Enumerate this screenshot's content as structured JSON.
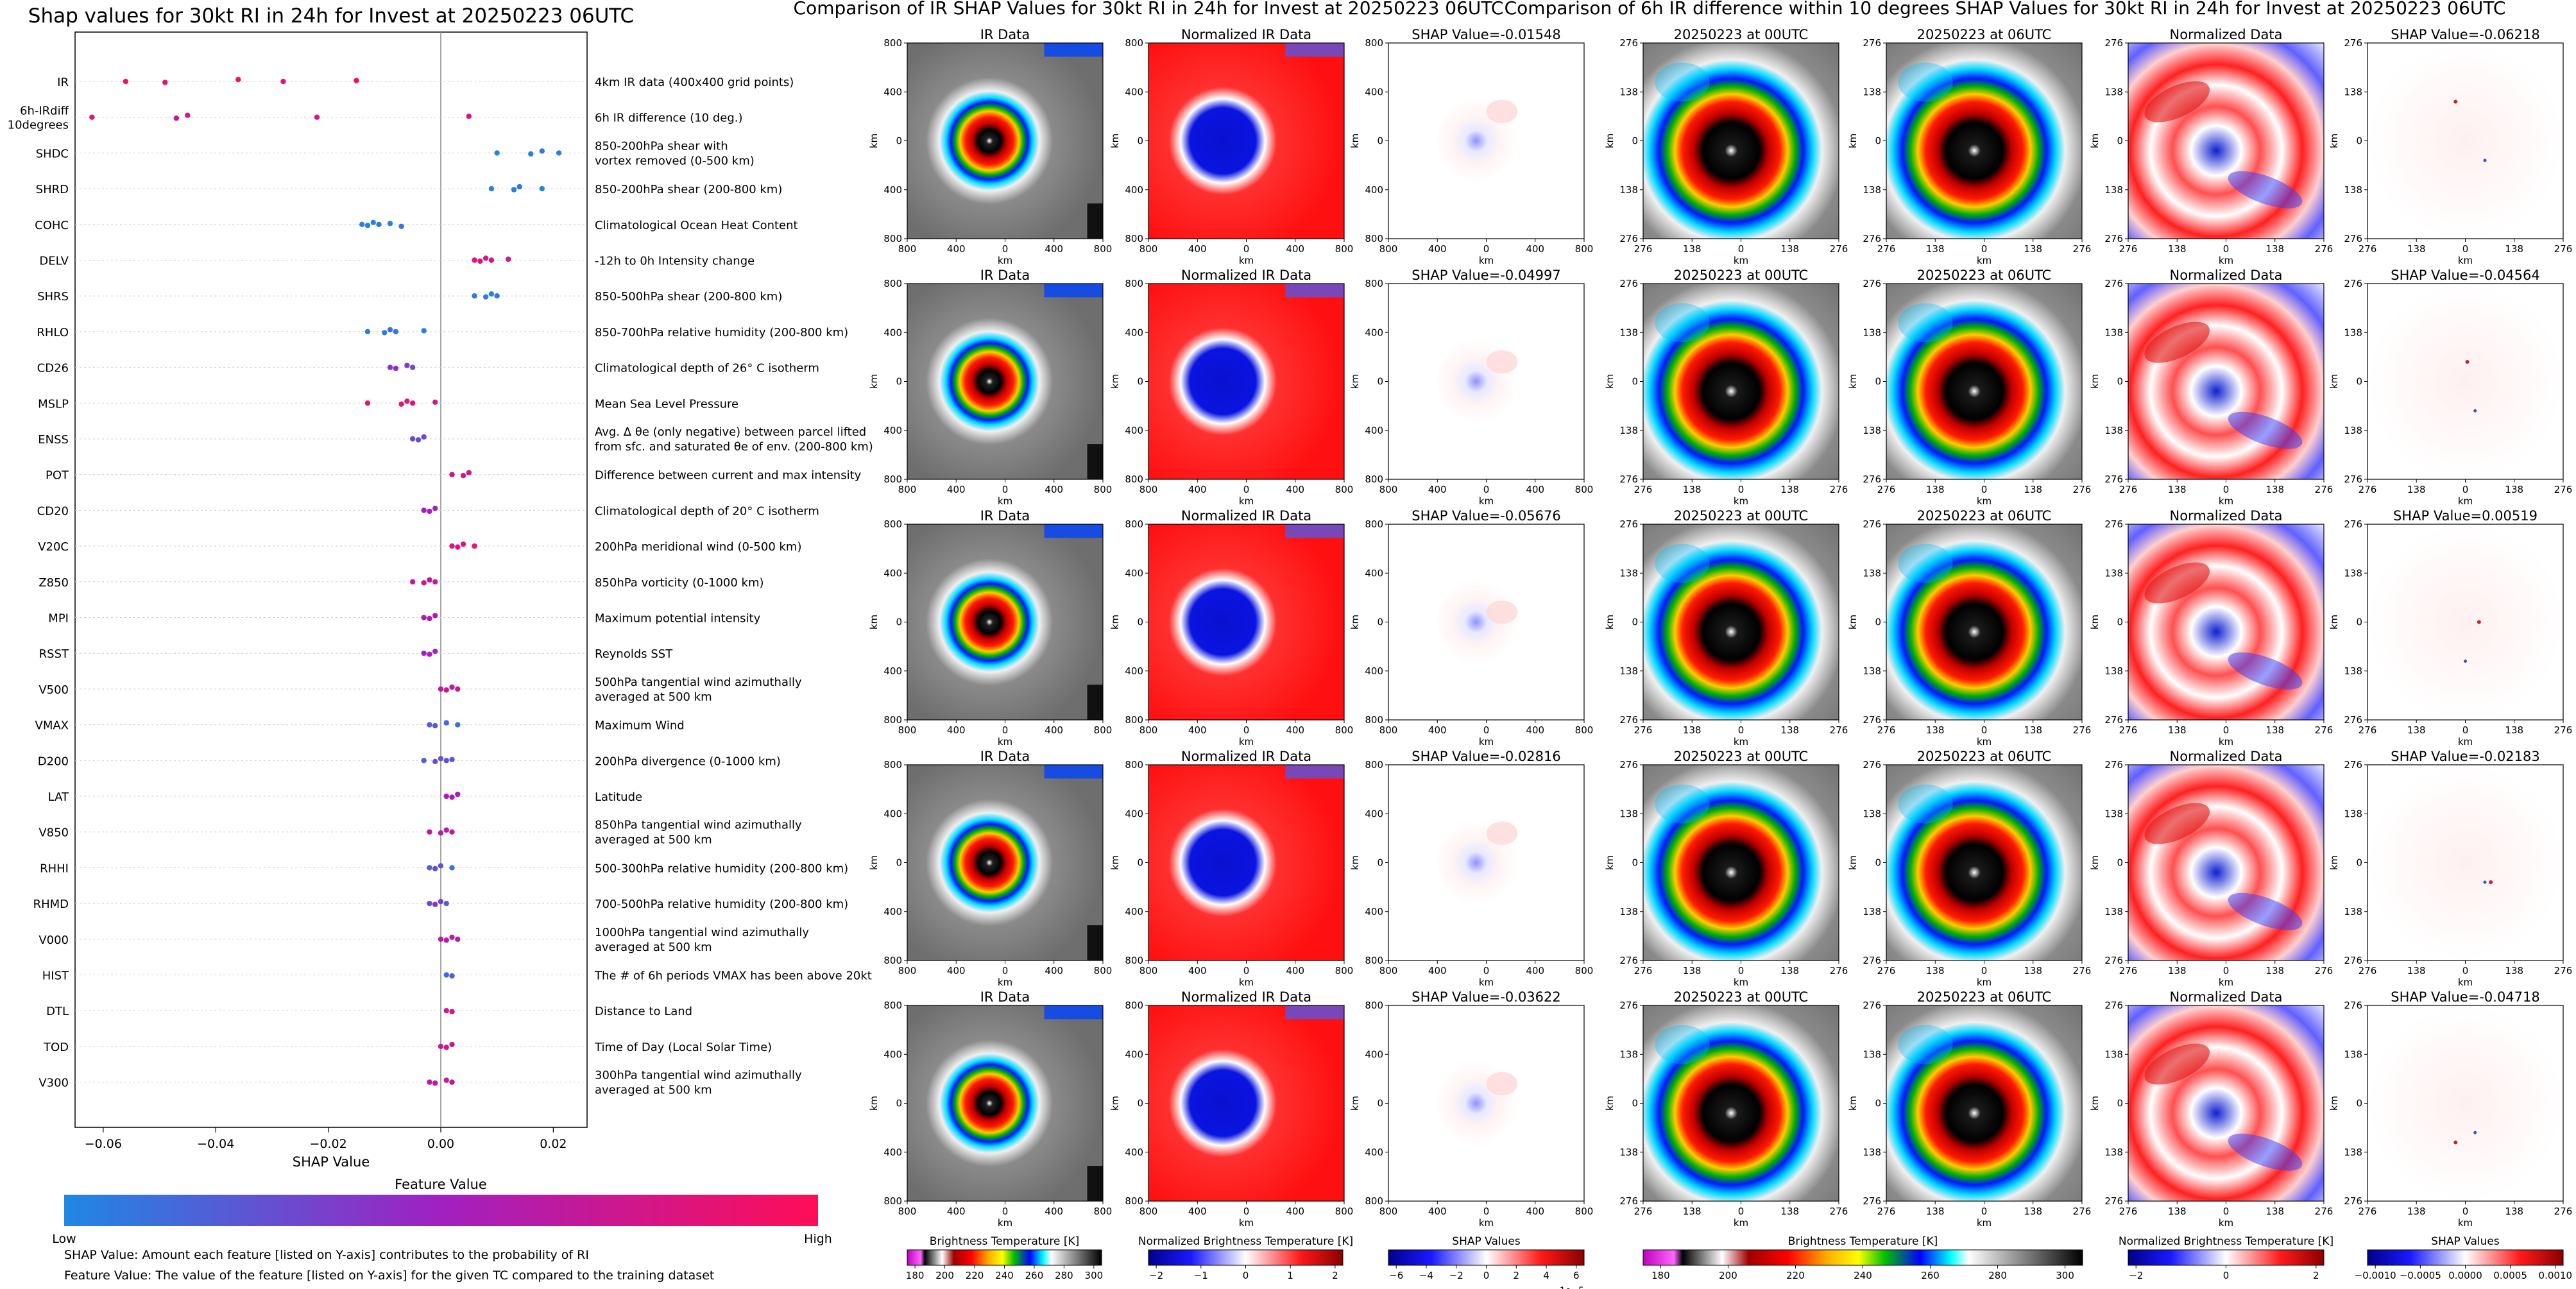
{
  "left_panel": {
    "title": "Shap values for 30kt RI in 24h for Invest at 20250223 06UTC",
    "colorbar_title": "Feature Value",
    "colorbar_low": "Low",
    "colorbar_high": "High",
    "note_1": "SHAP Value: Amount each feature [listed on Y-axis] contributes to the probability of RI",
    "note_2": "Feature Value: The value of the feature [listed on Y-axis] for the given TC compared to the training dataset"
  },
  "middle_panel": {
    "title": "Comparison of IR SHAP Values for 30kt RI in 24h for Invest at 20250223 06UTC",
    "col_titles": [
      "IR Data",
      "Normalized IR Data"
    ],
    "shap_titles": [
      "SHAP Value=-0.01548",
      "SHAP Value=-0.04997",
      "SHAP Value=-0.05676",
      "SHAP Value=-0.02816",
      "SHAP Value=-0.03622"
    ],
    "ticks": [
      "800",
      "400",
      "0",
      "400",
      "800"
    ],
    "axis_label": "km",
    "colorbars": [
      {
        "label": "Brightness Temperature [K]",
        "ticks": [
          "180",
          "200",
          "220",
          "240",
          "260",
          "280",
          "300"
        ]
      },
      {
        "label": "Normalized Brightness Temperature [K]",
        "ticks": [
          "−2",
          "−1",
          "0",
          "1",
          "2"
        ]
      },
      {
        "label": "SHAP Values",
        "ticks": [
          "−6",
          "−4",
          "−2",
          "0",
          "2",
          "4",
          "6"
        ],
        "exponent": "1e−5"
      }
    ]
  },
  "right_panel": {
    "title": "Comparison of 6h IR difference within 10 degrees SHAP Values for 30kt RI in 24h for Invest at 20250223 06UTC",
    "col_titles": [
      "20250223 at 00UTC",
      "20250223 at 06UTC",
      "Normalized Data"
    ],
    "shap_titles": [
      "SHAP Value=-0.06218",
      "SHAP Value=-0.04564",
      "SHAP Value=0.00519",
      "SHAP Value=-0.02183",
      "SHAP Value=-0.04718"
    ],
    "ticks": [
      "276",
      "138",
      "0",
      "138",
      "276"
    ],
    "axis_label": "km",
    "colorbars": [
      {
        "label": "Brightness Temperature [K]",
        "ticks": [
          "180",
          "200",
          "220",
          "240",
          "260",
          "280",
          "300"
        ]
      },
      {
        "label": "Normalized Brightness Temperature [K]",
        "ticks": [
          "−2",
          "0",
          "2"
        ]
      },
      {
        "label": "SHAP Values",
        "ticks": [
          "−0.0010",
          "−0.0005",
          "0.0000",
          "0.0005",
          "0.0010"
        ]
      }
    ]
  },
  "colors": {
    "low": "#1e88e5",
    "high": "#ff0d57",
    "mid": "#a020c0",
    "warm_bg": "#ff1a1a",
    "cold_core": "#0a14d8"
  },
  "chart_data": {
    "type": "scatter",
    "subtype": "shap-beeswarm",
    "xlabel": "SHAP Value",
    "xlim": [
      -0.065,
      0.026
    ],
    "xticks": [
      "−0.06",
      "−0.04",
      "−0.02",
      "0.00",
      "0.02"
    ],
    "features": [
      {
        "name": "IR",
        "description": "4km IR data (400x400 grid points)",
        "points": [
          [
            -0.056,
            0.95
          ],
          [
            -0.049,
            0.9
          ],
          [
            -0.036,
            0.93
          ],
          [
            -0.028,
            0.88
          ],
          [
            -0.015,
            0.97
          ]
        ]
      },
      {
        "name": "6h-IRdiff\n10degrees",
        "description": "6h IR difference (10 deg.)",
        "points": [
          [
            -0.062,
            0.85
          ],
          [
            -0.047,
            0.7
          ],
          [
            -0.045,
            0.75
          ],
          [
            -0.022,
            0.8
          ],
          [
            0.005,
            0.78
          ]
        ]
      },
      {
        "name": "SHDC",
        "description": "850-200hPa shear with\nvortex removed (0-500 km)",
        "points": [
          [
            0.01,
            0.02
          ],
          [
            0.016,
            0.05
          ],
          [
            0.018,
            0.08
          ],
          [
            0.021,
            0.04
          ]
        ]
      },
      {
        "name": "SHRD",
        "description": "850-200hPa shear (200-800 km)",
        "points": [
          [
            0.009,
            0.03
          ],
          [
            0.013,
            0.05
          ],
          [
            0.014,
            0.07
          ],
          [
            0.018,
            0.02
          ]
        ]
      },
      {
        "name": "COHC",
        "description": "Climatological Ocean Heat Content",
        "points": [
          [
            -0.014,
            0.03
          ],
          [
            -0.013,
            0.05
          ],
          [
            -0.012,
            0.04
          ],
          [
            -0.011,
            0.06
          ],
          [
            -0.009,
            0.05
          ],
          [
            -0.007,
            0.1
          ]
        ]
      },
      {
        "name": "DELV",
        "description": "-12h to 0h Intensity change",
        "points": [
          [
            0.006,
            0.85
          ],
          [
            0.007,
            0.8
          ],
          [
            0.008,
            0.72
          ],
          [
            0.009,
            0.78
          ],
          [
            0.012,
            0.7
          ]
        ]
      },
      {
        "name": "SHRS",
        "description": "850-500hPa shear (200-800 km)",
        "points": [
          [
            0.006,
            0.08
          ],
          [
            0.008,
            0.05
          ],
          [
            0.009,
            0.03
          ],
          [
            0.01,
            0.06
          ]
        ]
      },
      {
        "name": "RHLO",
        "description": "850-700hPa relative humidity (200-800 km)",
        "points": [
          [
            -0.013,
            0.05
          ],
          [
            -0.01,
            0.06
          ],
          [
            -0.009,
            0.08
          ],
          [
            -0.008,
            0.1
          ],
          [
            -0.003,
            0.05
          ]
        ]
      },
      {
        "name": "CD26",
        "description": "Climatological depth of 26° C isotherm",
        "points": [
          [
            -0.009,
            0.4
          ],
          [
            -0.008,
            0.45
          ],
          [
            -0.006,
            0.35
          ],
          [
            -0.005,
            0.3
          ]
        ]
      },
      {
        "name": "MSLP",
        "description": "Mean Sea Level Pressure",
        "points": [
          [
            -0.013,
            0.9
          ],
          [
            -0.007,
            0.88
          ],
          [
            -0.006,
            0.85
          ],
          [
            -0.005,
            0.8
          ],
          [
            -0.001,
            0.75
          ]
        ]
      },
      {
        "name": "ENSS",
        "description": "Avg. Δ θe (only negative) between parcel lifted\nfrom sfc. and saturated θe of env. (200-800 km)",
        "points": [
          [
            -0.005,
            0.3
          ],
          [
            -0.004,
            0.28
          ],
          [
            -0.003,
            0.32
          ]
        ]
      },
      {
        "name": "POT",
        "description": "Difference between current and max intensity",
        "points": [
          [
            0.002,
            0.7
          ],
          [
            0.004,
            0.75
          ],
          [
            0.005,
            0.72
          ]
        ]
      },
      {
        "name": "CD20",
        "description": "Climatological depth of 20° C isotherm",
        "points": [
          [
            -0.003,
            0.5
          ],
          [
            -0.002,
            0.52
          ],
          [
            -0.001,
            0.48
          ]
        ]
      },
      {
        "name": "V20C",
        "description": "200hPa meridional wind (0-500 km)",
        "points": [
          [
            0.002,
            0.78
          ],
          [
            0.003,
            0.82
          ],
          [
            0.004,
            0.8
          ],
          [
            0.006,
            0.85
          ]
        ]
      },
      {
        "name": "Z850",
        "description": "850hPa vorticity (0-1000 km)",
        "points": [
          [
            -0.005,
            0.65
          ],
          [
            -0.003,
            0.7
          ],
          [
            -0.002,
            0.66
          ],
          [
            -0.001,
            0.72
          ]
        ]
      },
      {
        "name": "MPI",
        "description": "Maximum potential intensity",
        "points": [
          [
            -0.003,
            0.55
          ],
          [
            -0.002,
            0.6
          ],
          [
            -0.001,
            0.58
          ]
        ]
      },
      {
        "name": "RSST",
        "description": "Reynolds SST",
        "points": [
          [
            -0.003,
            0.5
          ],
          [
            -0.002,
            0.55
          ],
          [
            -0.001,
            0.52
          ]
        ]
      },
      {
        "name": "V500",
        "description": "500hPa tangential wind azimuthally\naveraged at 500 km",
        "points": [
          [
            0.0,
            0.65
          ],
          [
            0.001,
            0.7
          ],
          [
            0.002,
            0.68
          ],
          [
            0.003,
            0.72
          ]
        ]
      },
      {
        "name": "VMAX",
        "description": "Maximum Wind",
        "points": [
          [
            -0.002,
            0.2
          ],
          [
            -0.001,
            0.25
          ],
          [
            0.001,
            0.15
          ],
          [
            0.003,
            0.1
          ]
        ]
      },
      {
        "name": "D200",
        "description": "200hPa divergence (0-1000 km)",
        "points": [
          [
            -0.003,
            0.2
          ],
          [
            -0.001,
            0.3
          ],
          [
            0.0,
            0.25
          ],
          [
            0.001,
            0.28
          ],
          [
            0.002,
            0.22
          ]
        ]
      },
      {
        "name": "LAT",
        "description": "Latitude",
        "points": [
          [
            0.001,
            0.55
          ],
          [
            0.002,
            0.58
          ],
          [
            0.003,
            0.52
          ]
        ]
      },
      {
        "name": "V850",
        "description": "850hPa tangential wind azimuthally\naveraged at 500 km",
        "points": [
          [
            -0.002,
            0.7
          ],
          [
            0.0,
            0.6
          ],
          [
            0.001,
            0.65
          ],
          [
            0.002,
            0.68
          ]
        ]
      },
      {
        "name": "RHHI",
        "description": "500-300hPa relative humidity (200-800 km)",
        "points": [
          [
            -0.002,
            0.2
          ],
          [
            -0.001,
            0.3
          ],
          [
            0.0,
            0.25
          ],
          [
            0.002,
            0.1
          ]
        ]
      },
      {
        "name": "RHMD",
        "description": "700-500hPa relative humidity (200-800 km)",
        "points": [
          [
            -0.002,
            0.3
          ],
          [
            -0.001,
            0.4
          ],
          [
            0.0,
            0.35
          ],
          [
            0.001,
            0.2
          ]
        ]
      },
      {
        "name": "V000",
        "description": "1000hPa tangential wind azimuthally\naveraged at 500 km",
        "points": [
          [
            0.0,
            0.6
          ],
          [
            0.001,
            0.65
          ],
          [
            0.002,
            0.62
          ],
          [
            0.003,
            0.58
          ]
        ]
      },
      {
        "name": "HIST",
        "description": "The # of 6h periods VMAX has been above 20kt",
        "points": [
          [
            0.001,
            0.15
          ],
          [
            0.002,
            0.2
          ]
        ]
      },
      {
        "name": "DTL",
        "description": "Distance to Land",
        "points": [
          [
            0.001,
            0.7
          ],
          [
            0.002,
            0.75
          ]
        ]
      },
      {
        "name": "TOD",
        "description": "Time of Day (Local Solar Time)",
        "points": [
          [
            0.0,
            0.7
          ],
          [
            0.001,
            0.72
          ],
          [
            0.002,
            0.68
          ]
        ]
      },
      {
        "name": "V300",
        "description": "300hPa tangential wind azimuthally\naveraged at 500 km",
        "points": [
          [
            -0.002,
            0.65
          ],
          [
            -0.001,
            0.7
          ],
          [
            0.001,
            0.72
          ],
          [
            0.002,
            0.68
          ]
        ]
      }
    ]
  }
}
